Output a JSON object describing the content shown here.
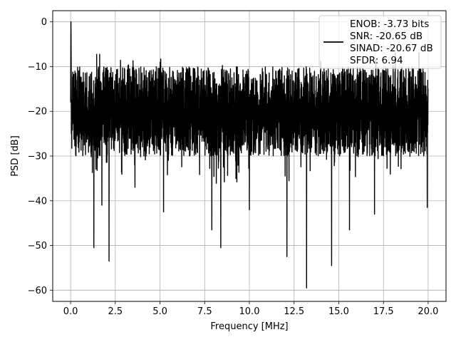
{
  "chart_data": {
    "type": "line",
    "xlabel": "Frequency [MHz]",
    "ylabel": "PSD [dB]",
    "xlim": [
      -1.0,
      21.0
    ],
    "ylim": [
      -62.5,
      2.5
    ],
    "xticks": [
      0.0,
      2.5,
      5.0,
      7.5,
      10.0,
      12.5,
      15.0,
      17.5,
      20.0
    ],
    "xtick_labels": [
      "0.0",
      "2.5",
      "5.0",
      "7.5",
      "10.0",
      "12.5",
      "15.0",
      "17.5",
      "20.0"
    ],
    "yticks": [
      0,
      -10,
      -20,
      -30,
      -40,
      -50,
      -60
    ],
    "ytick_labels": [
      "0",
      "−10",
      "−20",
      "−30",
      "−40",
      "−50",
      "−60"
    ],
    "grid": true,
    "legend_position": "top-right",
    "line_color": "#000000",
    "legend_lines": [
      "ENOB: -3.73 bits",
      "SNR: -20.65 dB",
      "SINAD: -20.67 dB",
      "SFDR: 6.94"
    ],
    "series": [
      {
        "x_range": [
          0.0,
          20.0
        ],
        "peak": {
          "x": 0.02,
          "y": 0.0
        },
        "notable_dips": [
          {
            "x": 1.3,
            "y": -50.5
          },
          {
            "x": 2.15,
            "y": -53.5
          },
          {
            "x": 8.4,
            "y": -50.5
          },
          {
            "x": 12.1,
            "y": -52.5
          },
          {
            "x": 13.2,
            "y": -59.5
          },
          {
            "x": 14.6,
            "y": -54.5
          },
          {
            "x": 7.9,
            "y": -46.5
          },
          {
            "x": 1.75,
            "y": -41.0
          },
          {
            "x": 5.2,
            "y": -42.5
          },
          {
            "x": 10.0,
            "y": -42.0
          },
          {
            "x": 15.6,
            "y": -46.5
          },
          {
            "x": 17.0,
            "y": -43.0
          },
          {
            "x": 19.95,
            "y": -41.5
          }
        ],
        "band_min": -30.0,
        "band_max": -10.0
      }
    ]
  }
}
